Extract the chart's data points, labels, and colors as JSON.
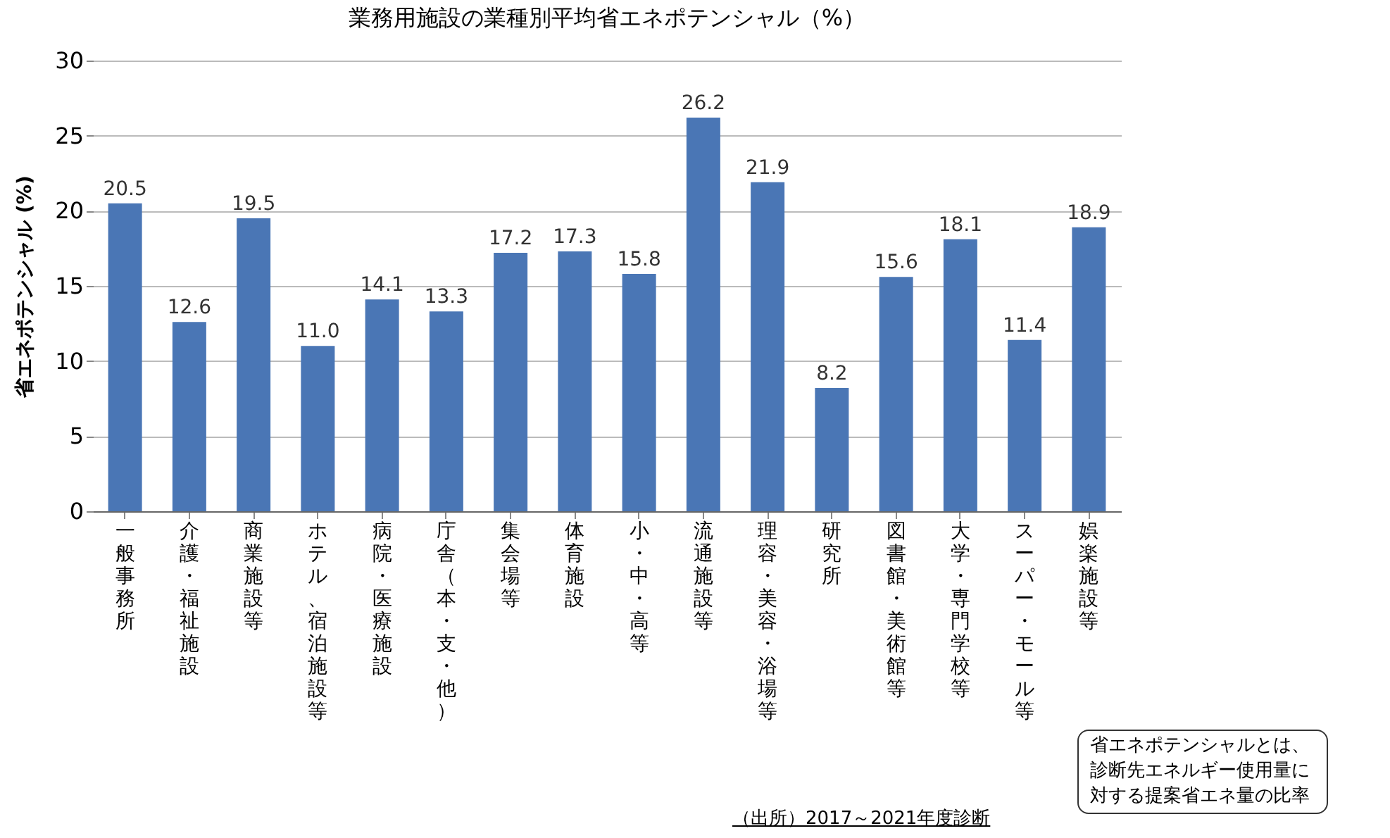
{
  "chart_data": {
    "type": "bar",
    "title": "業務用施設の業種別平均省エネポテンシャル（%）",
    "ylabel": "省エネポテンシャル (%)",
    "categories": [
      "一般事務所",
      "介護・福祉施設",
      "商業施設等",
      "ホテル、宿泊施設等",
      "病院・医療施設",
      "庁舎（本・支・他）",
      "集会場等",
      "体育施設",
      "小・中・高等",
      "流通施設等",
      "理容・美容・浴場等",
      "研究所",
      "図書館・美術館等",
      "大学・専門学校等",
      "スーパー・モール等",
      "娯楽施設等"
    ],
    "values": [
      20.5,
      12.6,
      19.5,
      11.0,
      14.1,
      13.3,
      17.2,
      17.3,
      15.8,
      26.2,
      21.9,
      8.2,
      15.6,
      18.1,
      11.4,
      18.9
    ],
    "value_labels": [
      "20.5",
      "12.6",
      "19.5",
      "11.0",
      "14.1",
      "13.3",
      "17.2",
      "17.3",
      "15.8",
      "26.2",
      "21.9",
      "8.2",
      "15.6",
      "18.1",
      "11.4",
      "18.9"
    ],
    "color": "#4a76b5",
    "ylim": [
      0,
      30
    ],
    "yticks": [
      0,
      5,
      10,
      15,
      20,
      25,
      30
    ],
    "grid": "y",
    "annotations": [
      "（出所）2017～2021年度診断",
      "省エネポテンシャルとは、診断先エネルギー使用量に対する提案省エネ量の比率"
    ]
  }
}
